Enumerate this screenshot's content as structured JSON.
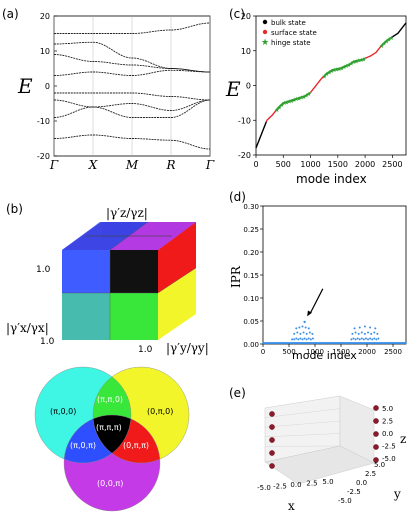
{
  "panel_labels": {
    "a": "(a)",
    "b": "(b)",
    "c": "(c)",
    "d": "(d)",
    "e": "(e)"
  },
  "colors": {
    "bulk": "#000000",
    "surface": "#e8282b",
    "hinge": "#2ea02e",
    "ipr": "#3a8ee6",
    "cyan": "#3ff5e3",
    "yellow": "#f2f52a",
    "magenta": "#c43ae6",
    "blue": "#2e4fff",
    "red": "#f01a1a",
    "green": "#39e63a",
    "black": "#000000",
    "points_e": "#8b1a2b"
  },
  "chart_data": [
    {
      "id": "a",
      "type": "line",
      "ylabel": "E",
      "ylim": [
        -20,
        20
      ],
      "yticks": [
        20,
        10,
        0,
        -10,
        -20
      ],
      "tick_labels": [
        "Γ",
        "X",
        "M",
        "R",
        "Γ"
      ],
      "bands": [
        {
          "name": "",
          "values": [
            15,
            15,
            15,
            16,
            18
          ]
        },
        {
          "name": "",
          "values": [
            12,
            12.5,
            8,
            5,
            4
          ]
        },
        {
          "name": "",
          "values": [
            9,
            7,
            6,
            5,
            4
          ]
        },
        {
          "name": "",
          "values": [
            3,
            4,
            3,
            4.5,
            4
          ]
        },
        {
          "name": "",
          "values": [
            -2,
            -2,
            -2,
            -3,
            -4
          ]
        },
        {
          "name": "",
          "values": [
            -4,
            -6,
            -5,
            -7,
            -4
          ]
        },
        {
          "name": "",
          "values": [
            -9,
            -6,
            -9,
            -9,
            -4
          ]
        },
        {
          "name": "",
          "values": [
            -15,
            -14,
            -15,
            -15.5,
            -18
          ]
        }
      ]
    },
    {
      "id": "c",
      "type": "scatter",
      "xlabel": "mode index",
      "ylabel": "E",
      "xlim": [
        0,
        2750
      ],
      "ylim": [
        -20,
        20
      ],
      "xticks": [
        0,
        500,
        1000,
        1500,
        2000,
        2500
      ],
      "yticks": [
        20,
        10,
        0,
        -10,
        -20
      ],
      "legend": [
        "bulk state",
        "surface state",
        "hinge state"
      ],
      "legend_position": "top-left",
      "curve": {
        "mode": [
          0,
          100,
          200,
          300,
          400,
          500,
          700,
          900,
          1000,
          1100,
          1200,
          1300,
          1400,
          1550,
          1700,
          1800,
          1950,
          2100,
          2200,
          2300,
          2400,
          2500,
          2600,
          2700,
          2750
        ],
        "energy": [
          -18,
          -14,
          -10,
          -8.5,
          -6.5,
          -5,
          -4,
          -3,
          -2,
          0,
          2,
          3.5,
          4.5,
          5,
          6,
          7,
          7.5,
          8.5,
          9.5,
          11.5,
          13,
          14,
          15,
          17,
          18
        ]
      },
      "segments": [
        {
          "type": "bulk",
          "from": 0,
          "to": 190
        },
        {
          "type": "surface",
          "from": 190,
          "to": 380
        },
        {
          "type": "hinge",
          "from": 380,
          "to": 1000
        },
        {
          "type": "surface",
          "from": 1000,
          "to": 1250
        },
        {
          "type": "hinge",
          "from": 1250,
          "to": 2000
        },
        {
          "type": "surface",
          "from": 2000,
          "to": 2300
        },
        {
          "type": "hinge",
          "from": 2300,
          "to": 2500
        },
        {
          "type": "bulk",
          "from": 2500,
          "to": 2750
        }
      ]
    },
    {
      "id": "d",
      "type": "scatter",
      "xlabel": "mode index",
      "ylabel": "IPR",
      "xlim": [
        0,
        2750
      ],
      "ylim": [
        0,
        0.3
      ],
      "xticks": [
        0,
        500,
        1000,
        1500,
        2000,
        2500
      ],
      "yticks": [
        0.0,
        0.05,
        0.1,
        0.15,
        0.2,
        0.25,
        0.3
      ],
      "tick_labels": [
        "0.00",
        "0.05",
        "0.10",
        "0.15",
        "0.20",
        "0.25",
        "0.30"
      ],
      "x": [
        560,
        600,
        640,
        680,
        720,
        760,
        800,
        840,
        880,
        920,
        960,
        600,
        660,
        720,
        780,
        840,
        900,
        950,
        640,
        700,
        760,
        820,
        880,
        1700,
        1740,
        1780,
        1820,
        1860,
        1900,
        1940,
        1980,
        2020,
        2060,
        2100,
        2140,
        2180,
        2220,
        1720,
        1780,
        1840,
        1900,
        1960,
        2020,
        2080,
        2140,
        2200,
        1760,
        1860,
        1960,
        2060,
        2160
      ],
      "y": [
        0.01,
        0.01,
        0.012,
        0.01,
        0.012,
        0.01,
        0.012,
        0.01,
        0.012,
        0.01,
        0.012,
        0.022,
        0.025,
        0.022,
        0.025,
        0.022,
        0.025,
        0.022,
        0.034,
        0.036,
        0.038,
        0.036,
        0.034,
        0.01,
        0.012,
        0.01,
        0.012,
        0.01,
        0.012,
        0.01,
        0.012,
        0.01,
        0.012,
        0.01,
        0.012,
        0.01,
        0.012,
        0.022,
        0.025,
        0.022,
        0.025,
        0.022,
        0.025,
        0.022,
        0.025,
        0.022,
        0.034,
        0.036,
        0.038,
        0.036,
        0.034
      ],
      "peak": {
        "x": 800,
        "y": 0.048
      },
      "baseline_y": 0.002,
      "arrow": {
        "from": [
          1150,
          0.12
        ],
        "to": [
          850,
          0.06
        ]
      }
    },
    {
      "id": "e",
      "type": "scatter3d",
      "xlabel": "x",
      "ylabel": "y",
      "zlabel": "z",
      "xticks": [
        "-5.0",
        "-2.5",
        "0.0",
        "2.5",
        "5.0"
      ],
      "yticks": [
        "-5.0",
        "-2.5",
        "0.0",
        "2.5",
        "5.0"
      ],
      "zticks": [
        "5.0",
        "2.5",
        "0.0",
        "-2.5",
        "-5.0"
      ],
      "points_left_z": [
        5,
        2.5,
        0,
        -2.5,
        -5
      ],
      "points_right_z": [
        5,
        2.5,
        0,
        -2.5,
        -5
      ]
    }
  ],
  "cube": {
    "axis_z": "|γ′z/γz|",
    "axis_x": "|γ′x/γx|",
    "axis_y": "|γ′y/γy|",
    "tick_z": "1.0",
    "tick_x": "1.0",
    "tick_y": "1.0"
  },
  "venn": {
    "labels": [
      "(π,0,0)",
      "(0,π,0)",
      "(0,0,π)",
      "(π,π,0)",
      "(π,0,π)",
      "(0,π,π)",
      "(π,π,π)"
    ]
  }
}
